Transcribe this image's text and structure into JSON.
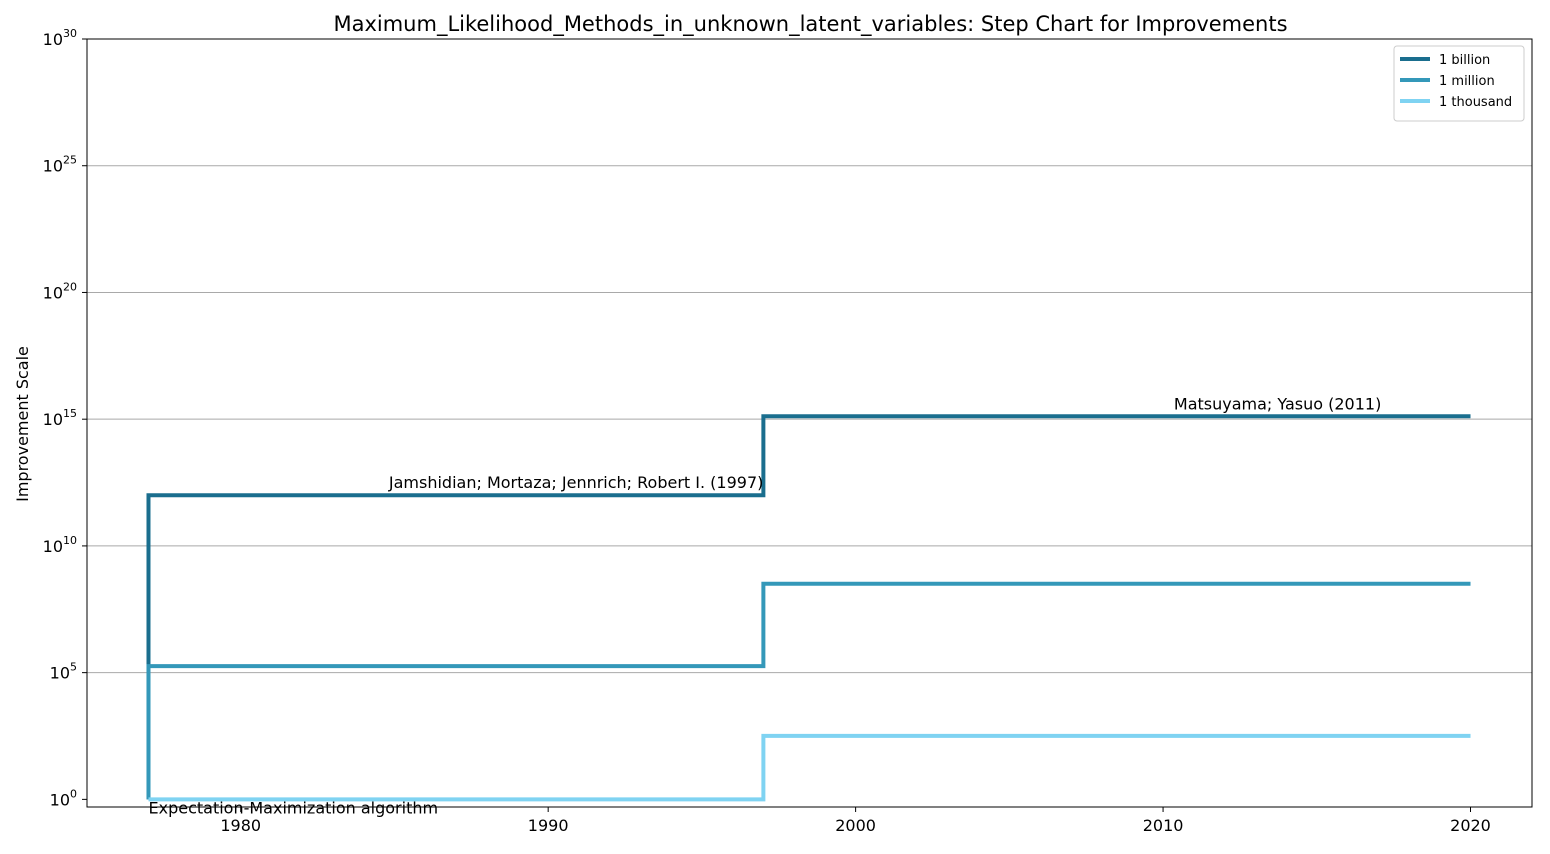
{
  "chart_data": {
    "type": "line",
    "step": "post",
    "title": "Maximum_Likelihood_Methods_in_unknown_latent_variables: Step Chart for Improvements",
    "xlabel": "",
    "ylabel": "Improvement Scale",
    "yscale": "log",
    "xlim": [
      1975,
      2022
    ],
    "ylim": [
      0.5,
      1e+30
    ],
    "x_ticks": [
      1980,
      1990,
      2000,
      2010,
      2020
    ],
    "y_tick_exponents": [
      0,
      5,
      10,
      15,
      20,
      25,
      30
    ],
    "y_tick_base": "10",
    "grid": "horizontal",
    "legend_position": "top-right",
    "series": [
      {
        "name": "1 billion",
        "color": "#1a6e8e",
        "points": [
          [
            1977,
            1
          ],
          [
            1977,
            1000000000000.0
          ],
          [
            1997,
            1000000000000.0
          ],
          [
            1997,
            1300000000000000.0
          ],
          [
            2020,
            1300000000000000.0
          ]
        ]
      },
      {
        "name": "1 million",
        "color": "#3498b9",
        "points": [
          [
            1977,
            1
          ],
          [
            1977,
            180000.0
          ],
          [
            1997,
            180000.0
          ],
          [
            1997,
            320000000.0
          ],
          [
            2020,
            320000000.0
          ]
        ]
      },
      {
        "name": "1 thousand",
        "color": "#7fd3f2",
        "points": [
          [
            1977,
            1
          ],
          [
            1997,
            1
          ],
          [
            1997,
            320.0
          ],
          [
            2020,
            320.0
          ]
        ]
      }
    ],
    "annotations": [
      {
        "text": "Expectation-Maximization algorithm",
        "x": 1977,
        "y": 1,
        "anchor": "start",
        "baseline": "below"
      },
      {
        "text": "Jamshidian; Mortaza; Jennrich; Robert I. (1997)",
        "x": 1997,
        "y": 1000000000000.0,
        "anchor": "end",
        "baseline": "above"
      },
      {
        "text": "Matsuyama; Yasuo (2011)",
        "x": 2017.1,
        "y": 1300000000000000.0,
        "anchor": "end",
        "baseline": "above"
      }
    ]
  }
}
